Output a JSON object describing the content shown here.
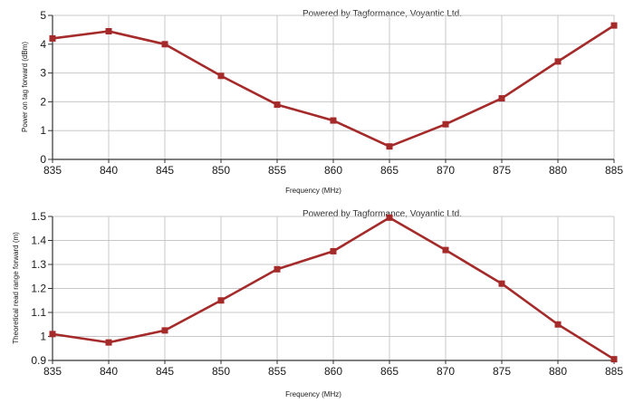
{
  "chart_data": [
    {
      "type": "line",
      "watermark": "Powered by Tagformance, Voyantic Ltd.",
      "xlabel": "Frequency (MHz)",
      "ylabel": "Power on tag forward (dBm)",
      "x": [
        835,
        840,
        845,
        850,
        855,
        860,
        865,
        870,
        875,
        880,
        885
      ],
      "series": [
        {
          "name": "Power on tag forward",
          "values": [
            4.2,
            4.45,
            4.0,
            2.9,
            1.9,
            1.35,
            0.45,
            1.22,
            2.12,
            3.4,
            4.65
          ]
        }
      ],
      "xlim": [
        835,
        885
      ],
      "ylim": [
        0,
        5
      ],
      "xticks": [
        "835",
        "840",
        "845",
        "850",
        "855",
        "860",
        "865",
        "870",
        "875",
        "880",
        "885"
      ],
      "yticks": [
        "0",
        "1",
        "2",
        "3",
        "4",
        "5"
      ],
      "ytick_values": [
        0,
        1,
        2,
        3,
        4,
        5
      ],
      "grid": true,
      "line_color": "#a52a2a"
    },
    {
      "type": "line",
      "watermark": "Powered by Tagformance, Voyantic Ltd.",
      "xlabel": "Frequency (MHz)",
      "ylabel": "Theoretical read range forward (m)",
      "x": [
        835,
        840,
        845,
        850,
        855,
        860,
        865,
        870,
        875,
        880,
        885
      ],
      "series": [
        {
          "name": "Theoretical read range forward",
          "values": [
            1.01,
            0.975,
            1.025,
            1.15,
            1.28,
            1.355,
            1.495,
            1.36,
            1.22,
            1.05,
            0.905
          ]
        }
      ],
      "xlim": [
        835,
        885
      ],
      "ylim": [
        0.9,
        1.5
      ],
      "xticks": [
        "835",
        "840",
        "845",
        "850",
        "855",
        "860",
        "865",
        "870",
        "875",
        "880",
        "885"
      ],
      "yticks": [
        "0.9",
        "1",
        "1.1",
        "1.2",
        "1.3",
        "1.4",
        "1.5"
      ],
      "ytick_values": [
        0.9,
        1.0,
        1.1,
        1.2,
        1.3,
        1.4,
        1.5
      ],
      "grid": true,
      "line_color": "#a52a2a"
    }
  ]
}
